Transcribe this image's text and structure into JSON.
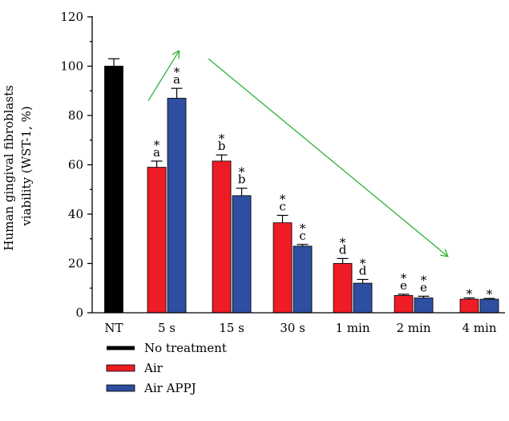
{
  "chart_data": {
    "type": "bar",
    "ylabel_line1": "Human gingival fibroblasts",
    "ylabel_line2": "viability (WST-1, %)",
    "ylim": [
      0,
      120
    ],
    "yticks": [
      0,
      20,
      40,
      60,
      80,
      100,
      120
    ],
    "categories": [
      "NT",
      "5 s",
      "15 s",
      "30 s",
      "1 min",
      "2 min",
      "4 min"
    ],
    "series": [
      {
        "name": "No treatment",
        "color": "#000000",
        "values": [
          100,
          null,
          null,
          null,
          null,
          null,
          null
        ],
        "errors": [
          3,
          null,
          null,
          null,
          null,
          null,
          null
        ]
      },
      {
        "name": "Air",
        "color": "#ee1c25",
        "values": [
          null,
          59,
          61.5,
          36.5,
          20,
          7,
          5.5
        ],
        "errors": [
          null,
          2.5,
          2.5,
          3,
          2,
          0.5,
          0.5
        ]
      },
      {
        "name": "Air APPJ",
        "color": "#2e4ea1",
        "values": [
          null,
          87,
          47.5,
          27,
          12,
          6,
          5.5
        ],
        "errors": [
          null,
          4,
          3,
          0.7,
          1.5,
          0.7,
          0.3
        ]
      }
    ],
    "annotations": [
      {
        "category": "5 s",
        "series": "Air",
        "lines": [
          "*",
          "a"
        ]
      },
      {
        "category": "5 s",
        "series": "Air APPJ",
        "lines": [
          "*",
          "a"
        ]
      },
      {
        "category": "15 s",
        "series": "Air",
        "lines": [
          "*",
          "b"
        ]
      },
      {
        "category": "15 s",
        "series": "Air APPJ",
        "lines": [
          "*",
          "b"
        ]
      },
      {
        "category": "30 s",
        "series": "Air",
        "lines": [
          "*",
          "c"
        ]
      },
      {
        "category": "30 s",
        "series": "Air APPJ",
        "lines": [
          "*",
          "c"
        ]
      },
      {
        "category": "1 min",
        "series": "Air",
        "lines": [
          "*",
          "d"
        ]
      },
      {
        "category": "1 min",
        "series": "Air APPJ",
        "lines": [
          "*",
          "d"
        ]
      },
      {
        "category": "2 min",
        "series": "Air",
        "lines": [
          "*",
          "e"
        ]
      },
      {
        "category": "2 min",
        "series": "Air APPJ",
        "lines": [
          "*",
          "e"
        ]
      },
      {
        "category": "4 min",
        "series": "Air",
        "lines": [
          "*"
        ]
      },
      {
        "category": "4 min",
        "series": "Air APPJ",
        "lines": [
          "*"
        ]
      }
    ],
    "trend_arrows": [
      {
        "from": [
          "5 s",
          86
        ],
        "to": [
          "5 s",
          106
        ],
        "color": "#2eb135"
      },
      {
        "from": [
          "15 s",
          103
        ],
        "to": [
          "4 min",
          23
        ],
        "color": "#2eb135"
      }
    ],
    "legend_position": "bottom-left",
    "grid": false
  }
}
